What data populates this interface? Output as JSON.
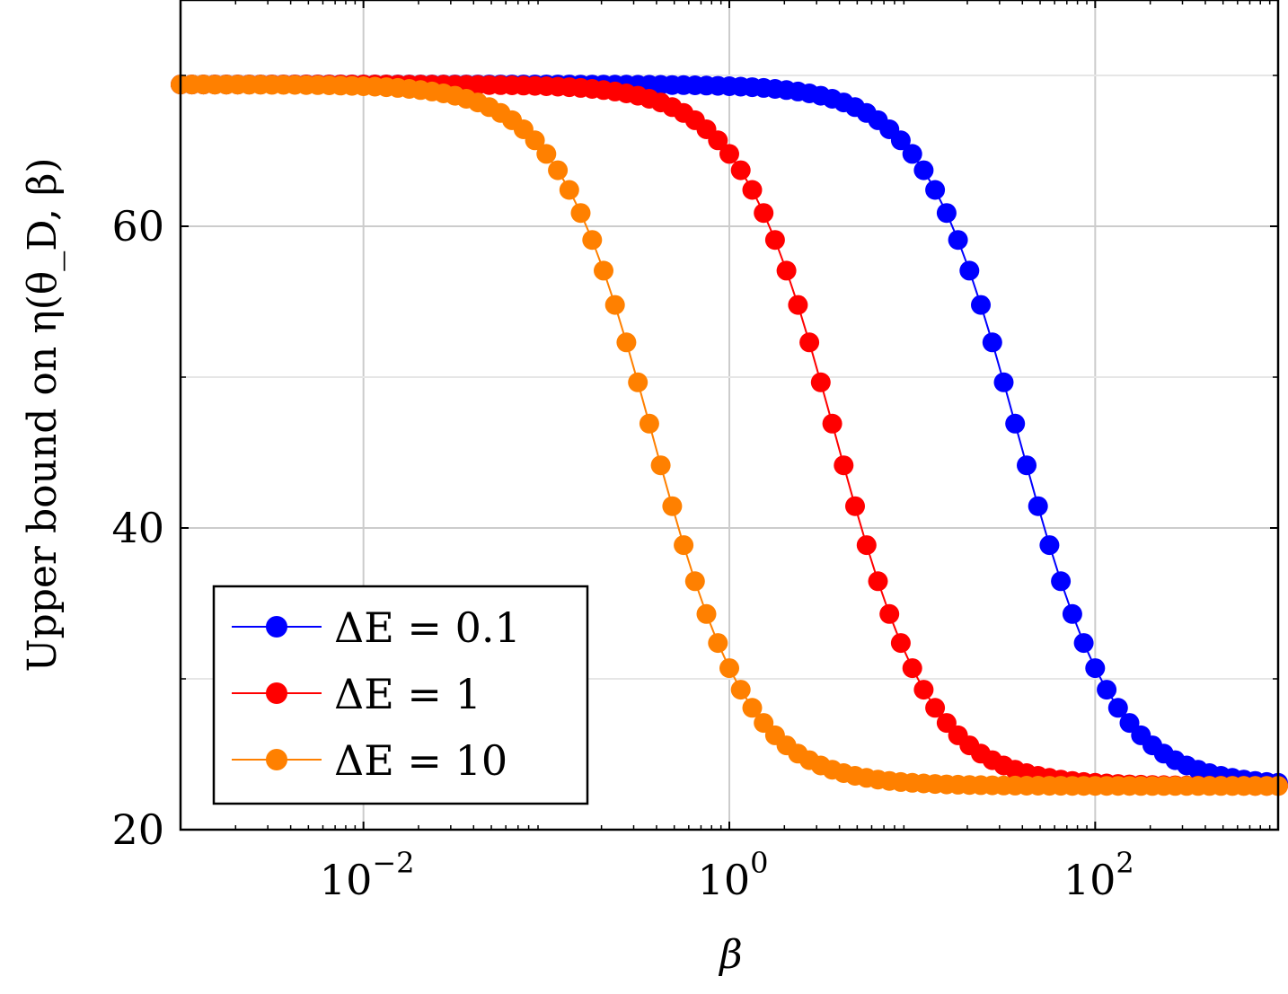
{
  "chart_data": {
    "type": "scatter",
    "title": "",
    "xlabel": "β",
    "ylabel": "Upper bound on η(θ_D, β)",
    "xscale": "log",
    "xlim": [
      0.001,
      1000
    ],
    "ylim": [
      20,
      75
    ],
    "grid": true,
    "legend_position": "bottom-left",
    "x_ticks": [
      {
        "value": 0.01,
        "base": "10",
        "exp": "−2"
      },
      {
        "value": 1,
        "base": "10",
        "exp": "0"
      },
      {
        "value": 100,
        "base": "10",
        "exp": "2"
      }
    ],
    "y_ticks": [
      {
        "value": 20,
        "label": "20"
      },
      {
        "value": 40,
        "label": "40"
      },
      {
        "value": 60,
        "label": "60"
      }
    ],
    "series_shape": {
      "y_high": 69.4,
      "y_low": 22.9,
      "points_per_decade": 16
    },
    "series": [
      {
        "name": "ΔE = 0.1",
        "color": "#0000ff",
        "midpoint_beta": 38,
        "decline_log_width": 0.42,
        "ease_start_beta": 0.15
      },
      {
        "name": "ΔE = 1",
        "color": "#ff0000",
        "midpoint_beta": 3.8,
        "decline_log_width": 0.42,
        "ease_start_beta": 0.015
      },
      {
        "name": "ΔE = 10",
        "color": "#ff8000",
        "midpoint_beta": 0.38,
        "decline_log_width": 0.42,
        "ease_start_beta": 0.0015
      }
    ]
  }
}
